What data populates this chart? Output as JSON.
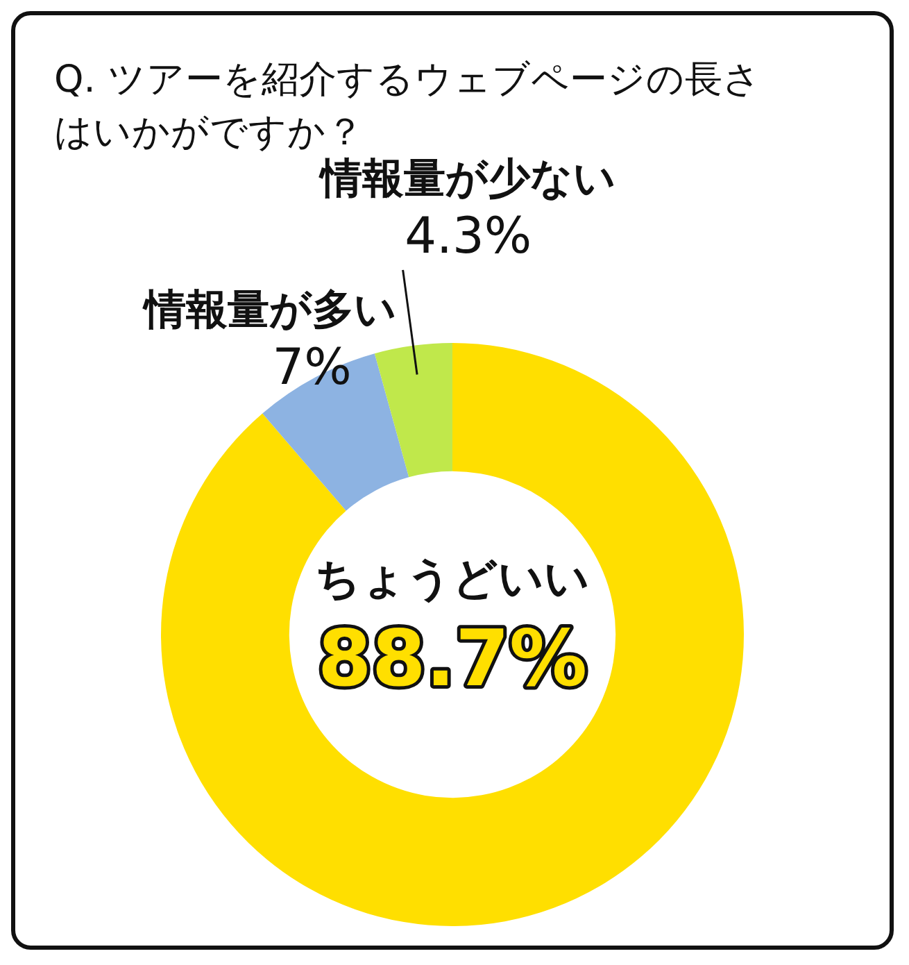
{
  "chart_data": {
    "type": "donut",
    "title": "Q. ツアーを紹介するウェブページの長さはいかがですか？",
    "categories": [
      "ちょうどいい",
      "情報量が多い",
      "情報量が少ない"
    ],
    "values": [
      88.7,
      7,
      4.3
    ],
    "value_labels": [
      "88.7%",
      "7%",
      "4.3%"
    ],
    "colors": [
      "#ffdf00",
      "#8db3e2",
      "#c0e84b"
    ]
  }
}
